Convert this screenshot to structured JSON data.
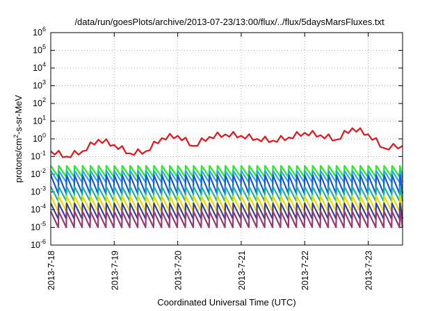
{
  "chart_data": {
    "type": "line",
    "title": "/data/run/goesPlots/archive/2013-07-23/13:00/flux/../flux/5daysMarsFluxes.txt",
    "xlabel": "Coordinated Universal Time (UTC)",
    "ylabel": "protons/cm2-s-sr-MeV",
    "ylabel_parts": [
      "protons/cm",
      "2",
      "-s-sr-MeV"
    ],
    "yscale": "log",
    "ylim": [
      1e-06,
      1000000.0
    ],
    "y_ticks": [
      {
        "mantissa": "10",
        "exponent": "-6",
        "value": 1e-06
      },
      {
        "mantissa": "10",
        "exponent": "-5",
        "value": 1e-05
      },
      {
        "mantissa": "10",
        "exponent": "-4",
        "value": 0.0001
      },
      {
        "mantissa": "10",
        "exponent": "-3",
        "value": 0.001
      },
      {
        "mantissa": "10",
        "exponent": "-2",
        "value": 0.01
      },
      {
        "mantissa": "10",
        "exponent": "-1",
        "value": 0.1
      },
      {
        "mantissa": "10",
        "exponent": "0",
        "value": 1
      },
      {
        "mantissa": "10",
        "exponent": "1",
        "value": 10
      },
      {
        "mantissa": "10",
        "exponent": "2",
        "value": 100
      },
      {
        "mantissa": "10",
        "exponent": "3",
        "value": 1000
      },
      {
        "mantissa": "10",
        "exponent": "4",
        "value": 10000
      },
      {
        "mantissa": "10",
        "exponent": "5",
        "value": 100000
      },
      {
        "mantissa": "10",
        "exponent": "6",
        "value": 1000000
      }
    ],
    "xlim": [
      "2013-07-18",
      "2013-07-23T13:00"
    ],
    "x_ticks": [
      "2013-7-18",
      "2013-7-19",
      "2013-7-20",
      "2013-7-21",
      "2013-7-22",
      "2013-7-23"
    ],
    "grid": true,
    "legend": "none",
    "series": [
      {
        "color": "#e8131a",
        "x": [
          "2013-07-18T00:00",
          "2013-07-18T06:00",
          "2013-07-18T12:00",
          "2013-07-18T18:00",
          "2013-07-19T00:00",
          "2013-07-19T06:00",
          "2013-07-19T12:00",
          "2013-07-19T18:00",
          "2013-07-20T00:00",
          "2013-07-20T06:00",
          "2013-07-20T12:00",
          "2013-07-20T18:00",
          "2013-07-21T00:00",
          "2013-07-21T06:00",
          "2013-07-21T12:00",
          "2013-07-21T18:00",
          "2013-07-22T00:00",
          "2013-07-22T06:00",
          "2013-07-22T12:00",
          "2013-07-22T18:00",
          "2013-07-23T00:00",
          "2013-07-23T06:00",
          "2013-07-23T13:00"
        ],
        "values": [
          0.2,
          0.1,
          0.2,
          0.9,
          0.45,
          0.15,
          0.2,
          1.1,
          1.5,
          0.4,
          1.3,
          1.8,
          1.5,
          1.0,
          0.8,
          1.2,
          2.2,
          1.6,
          0.9,
          4.0,
          1.8,
          0.3,
          0.4
        ]
      },
      {
        "color": "#22ee22",
        "baseline": 0.012,
        "amplitude": 0.018,
        "decay": 0.007
      },
      {
        "color": "#2aa7e8",
        "baseline": 0.006,
        "amplitude": 0.01,
        "decay": 0.0035
      },
      {
        "color": "#1457d8",
        "baseline": 0.003,
        "amplitude": 0.006,
        "decay": 0.0008
      },
      {
        "color": "#18b3a0",
        "baseline": 0.0008,
        "amplitude": 0.0012,
        "decay": 0.0003
      },
      {
        "color": "#e8d800",
        "baseline": 0.0002,
        "amplitude": 0.0004,
        "decay": 8e-05
      },
      {
        "color": "#3b3b9a",
        "baseline": 8e-05,
        "amplitude": 0.00015,
        "decay": 3e-05
      },
      {
        "color": "#983a72",
        "baseline": 3e-05,
        "amplitude": 5e-05,
        "decay": 1e-05
      }
    ]
  }
}
